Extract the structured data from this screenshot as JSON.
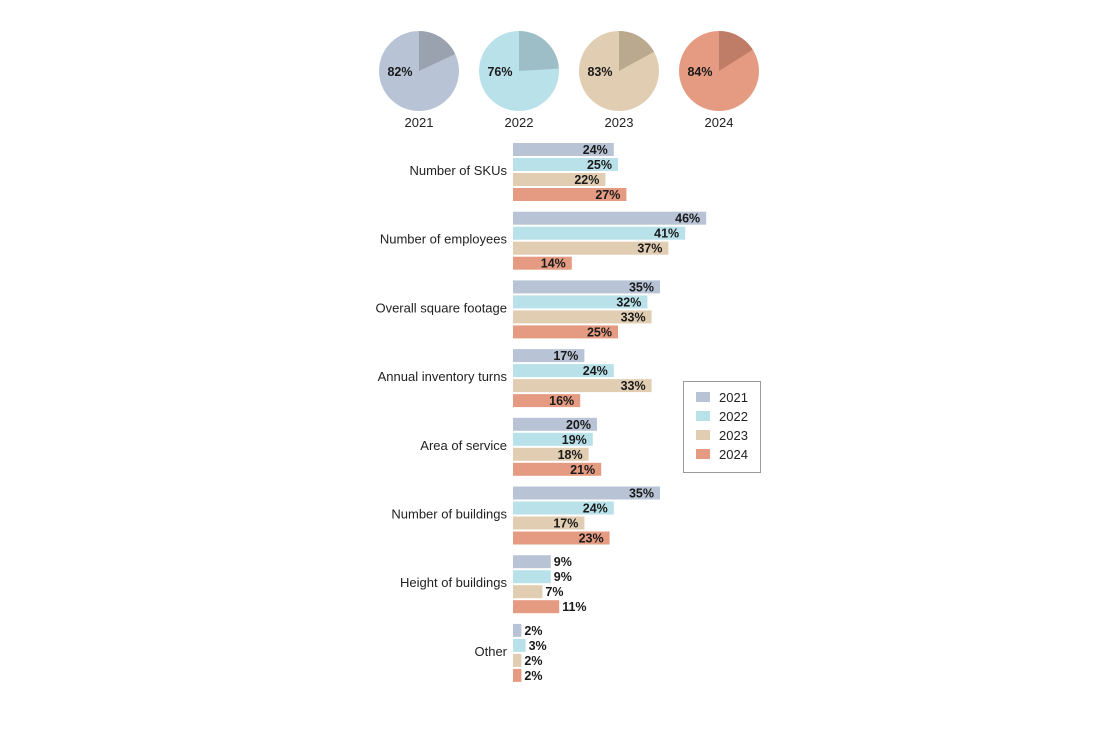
{
  "chart_data": [
    {
      "type": "pie",
      "pies": [
        {
          "year": "2021",
          "value": 82,
          "label": "82%",
          "color": "#b8c4d6",
          "rest_color": "#9aa2b0"
        },
        {
          "year": "2022",
          "value": 76,
          "label": "76%",
          "color": "#b9e1ea",
          "rest_color": "#9dbec6"
        },
        {
          "year": "2023",
          "value": 83,
          "label": "83%",
          "color": "#e1cdb2",
          "rest_color": "#bba98f"
        },
        {
          "year": "2024",
          "value": 84,
          "label": "84%",
          "color": "#e59b82",
          "rest_color": "#bf7c67"
        }
      ]
    },
    {
      "type": "bar",
      "orientation": "horizontal",
      "xlim": [
        0,
        50
      ],
      "categories": [
        "Number of SKUs",
        "Number of employees",
        "Overall square footage",
        "Annual inventory turns",
        "Area of service",
        "Number of buildings",
        "Height of buildings",
        "Other"
      ],
      "series": [
        {
          "name": "2021",
          "color": "#b8c4d6",
          "values": [
            24,
            46,
            35,
            17,
            20,
            35,
            9,
            2
          ],
          "labels": [
            "24%",
            "46%",
            "35%",
            "17%",
            "20%",
            "35%",
            "9%",
            "2%"
          ]
        },
        {
          "name": "2022",
          "color": "#b9e1ea",
          "values": [
            25,
            41,
            32,
            24,
            19,
            24,
            9,
            3
          ],
          "labels": [
            "25%",
            "41%",
            "32%",
            "24%",
            "19%",
            "24%",
            "9%",
            "3%"
          ]
        },
        {
          "name": "2023",
          "color": "#e1cdb2",
          "values": [
            22,
            37,
            33,
            33,
            18,
            17,
            7,
            2
          ],
          "labels": [
            "22%",
            "37%",
            "33%",
            "33%",
            "18%",
            "17%",
            "7%",
            "2%"
          ]
        },
        {
          "name": "2024",
          "color": "#e59b82",
          "values": [
            27,
            14,
            25,
            16,
            21,
            23,
            11,
            2
          ],
          "labels": [
            "27%",
            "14%",
            "25%",
            "16%",
            "21%",
            "23%",
            "11%",
            "2%"
          ]
        }
      ],
      "legend": {
        "position": "right",
        "entries": [
          "2021",
          "2022",
          "2023",
          "2024"
        ]
      }
    }
  ]
}
